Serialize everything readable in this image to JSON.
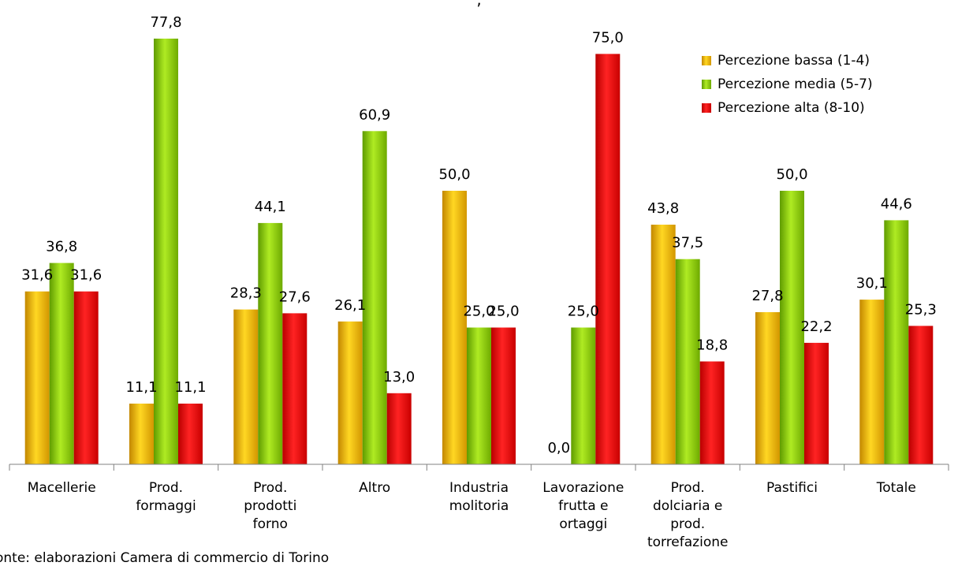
{
  "source_note": "onte: elaborazioni Camera di commercio di Torino",
  "chart_data": {
    "type": "bar",
    "categories": [
      [
        "Macellerie"
      ],
      [
        "Prod.",
        "formaggi"
      ],
      [
        "Prod.",
        "prodotti",
        "forno"
      ],
      [
        "Altro"
      ],
      [
        "Industria",
        "molitoria"
      ],
      [
        "Lavorazione",
        "frutta e",
        "ortaggi"
      ],
      [
        "Prod.",
        "dolciaria e",
        "prod.",
        "torrefazione"
      ],
      [
        "Pastifici"
      ],
      [
        "Totale"
      ]
    ],
    "series": [
      {
        "name": "Percezione bassa (1-4)",
        "color": "#f0b400",
        "values": [
          31.6,
          11.1,
          28.3,
          26.1,
          50.0,
          0.0,
          43.8,
          27.8,
          30.1
        ]
      },
      {
        "name": "Percezione media (5-7)",
        "color": "#8cc800",
        "values": [
          36.8,
          77.8,
          44.1,
          60.9,
          25.0,
          25.0,
          37.5,
          50.0,
          44.6
        ]
      },
      {
        "name": "Percezione alta (8-10)",
        "color": "#e60000",
        "values": [
          31.6,
          11.1,
          27.6,
          13.0,
          25.0,
          75.0,
          18.8,
          22.2,
          25.3
        ]
      }
    ],
    "data_labels": [
      [
        "31,6",
        "11,1",
        "28,3",
        "26,1",
        "50,0",
        "0,0",
        "43,8",
        "27,8",
        "30,1"
      ],
      [
        "36,8",
        "77,8",
        "44,1",
        "60,9",
        "25,0",
        "25,0",
        "37,5",
        "50,0",
        "44,6"
      ],
      [
        "31,6",
        "11,1",
        "27,6",
        "13,0",
        "25,0",
        "75,0",
        "18,8",
        "22,2",
        "25,3"
      ]
    ],
    "ylim": [
      0,
      80
    ],
    "grid": false,
    "legend_position": "top-right"
  }
}
